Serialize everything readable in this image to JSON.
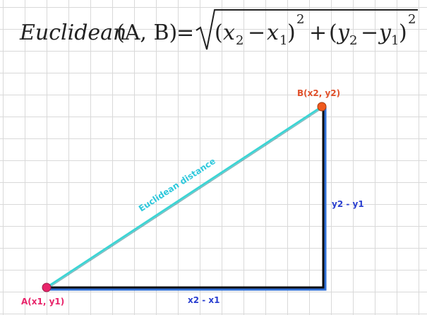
{
  "formula": {
    "function_name": "Euclidean",
    "args": "(A, B)",
    "equals": "=",
    "term1_open": "(",
    "x2": "x",
    "x2_sub": "2",
    "minus": "−",
    "x1": "x",
    "x1_sub": "1",
    "term1_close": ")",
    "exp1": "2",
    "plus": "+",
    "term2_open": "(",
    "y2": "y",
    "y2_sub": "2",
    "y1": "y",
    "y1_sub": "1",
    "term2_close": ")",
    "exp2": "2"
  },
  "diagram": {
    "point_a_label": "A(x1, y1)",
    "point_b_label": "B(x2, y2)",
    "hypotenuse_label": "Euclidean distance",
    "horizontal_label": "x2 - x1",
    "vertical_label": "y2 - y1"
  },
  "colors": {
    "point_a": "#e8246a",
    "point_b": "#f05a1e",
    "hypotenuse": "#3cd4d4",
    "hypotenuse_label": "#2ec8dc",
    "legs": "#0d0d0d",
    "leg_shadow": "#2f6fd6",
    "leg_labels": "#2a3fd0",
    "label_a": "#e8246a",
    "label_b": "#e0502a",
    "grid": "#d9d9d9"
  }
}
